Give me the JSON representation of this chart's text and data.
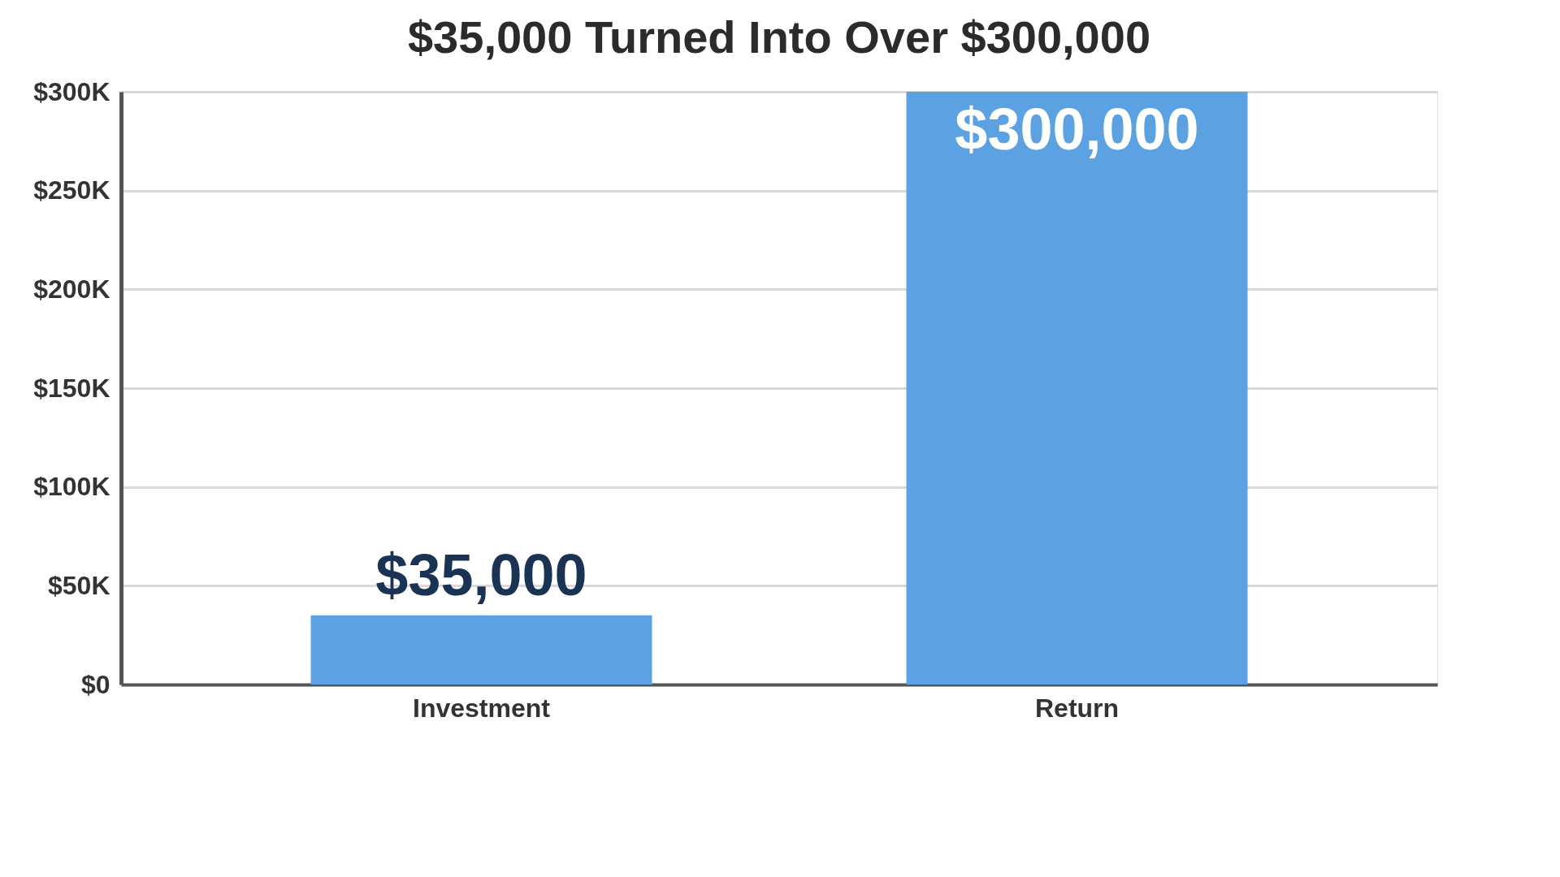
{
  "chart_data": {
    "type": "bar",
    "title": "$35,000 Turned Into Over $300,000",
    "categories": [
      "Investment",
      "Return"
    ],
    "values": [
      35000,
      300000
    ],
    "value_labels": [
      "$35,000",
      "$300,000"
    ],
    "color": "#5ca2e2",
    "ylim": [
      0,
      300000
    ],
    "yticks": [
      {
        "value": 0,
        "label": "$0"
      },
      {
        "value": 50000,
        "label": "$50K"
      },
      {
        "value": 100000,
        "label": "$100K"
      },
      {
        "value": 150000,
        "label": "$150K"
      },
      {
        "value": 200000,
        "label": "$200K"
      },
      {
        "value": 250000,
        "label": "$250K"
      },
      {
        "value": 300000,
        "label": "$300K"
      }
    ],
    "grid": "y"
  }
}
